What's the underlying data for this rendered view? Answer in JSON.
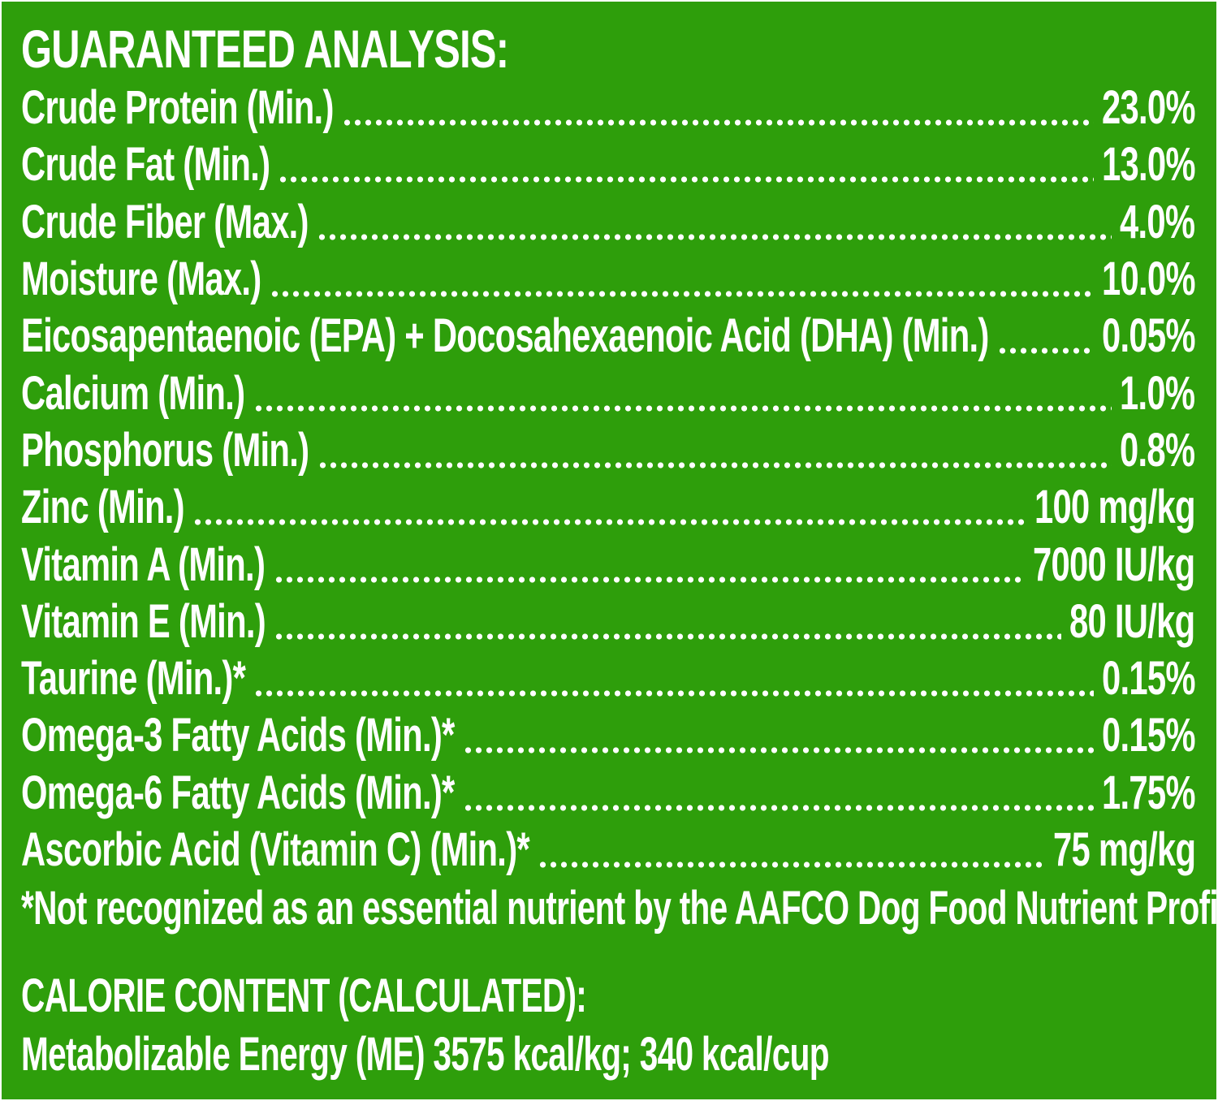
{
  "colors": {
    "background": "#2e9e0b",
    "text": "#ffffff"
  },
  "heading": "GUARANTEED ANALYSIS:",
  "rows": [
    {
      "label": "Crude Protein (Min.)",
      "value": "23.0%"
    },
    {
      "label": "Crude Fat (Min.)",
      "value": "13.0%"
    },
    {
      "label": "Crude Fiber (Max.)",
      "value": "4.0%"
    },
    {
      "label": "Moisture (Max.)",
      "value": "10.0%"
    },
    {
      "label": "Eicosapentaenoic (EPA) + Docosahexaenoic Acid (DHA) (Min.)",
      "value": "0.05%"
    },
    {
      "label": "Calcium (Min.)",
      "value": "1.0%"
    },
    {
      "label": "Phosphorus (Min.)",
      "value": "0.8%"
    },
    {
      "label": "Zinc (Min.)",
      "value": "100 mg/kg"
    },
    {
      "label": "Vitamin A (Min.)",
      "value": "7000 IU/kg"
    },
    {
      "label": "Vitamin E (Min.)",
      "value": "80 IU/kg"
    },
    {
      "label": "Taurine (Min.)*",
      "value": "0.15%"
    },
    {
      "label": "Omega-3 Fatty Acids (Min.)*",
      "value": "0.15%"
    },
    {
      "label": "Omega-6 Fatty Acids (Min.)*",
      "value": "1.75%"
    },
    {
      "label": "Ascorbic Acid (Vitamin C) (Min.)*",
      "value": "75 mg/kg"
    }
  ],
  "footnote": "*Not recognized as an essential nutrient by the AAFCO Dog Food Nutrient Profiles.",
  "calorie": {
    "heading": "CALORIE CONTENT (CALCULATED):",
    "text": "Metabolizable Energy (ME) 3575 kcal/kg;  340 kcal/cup"
  }
}
